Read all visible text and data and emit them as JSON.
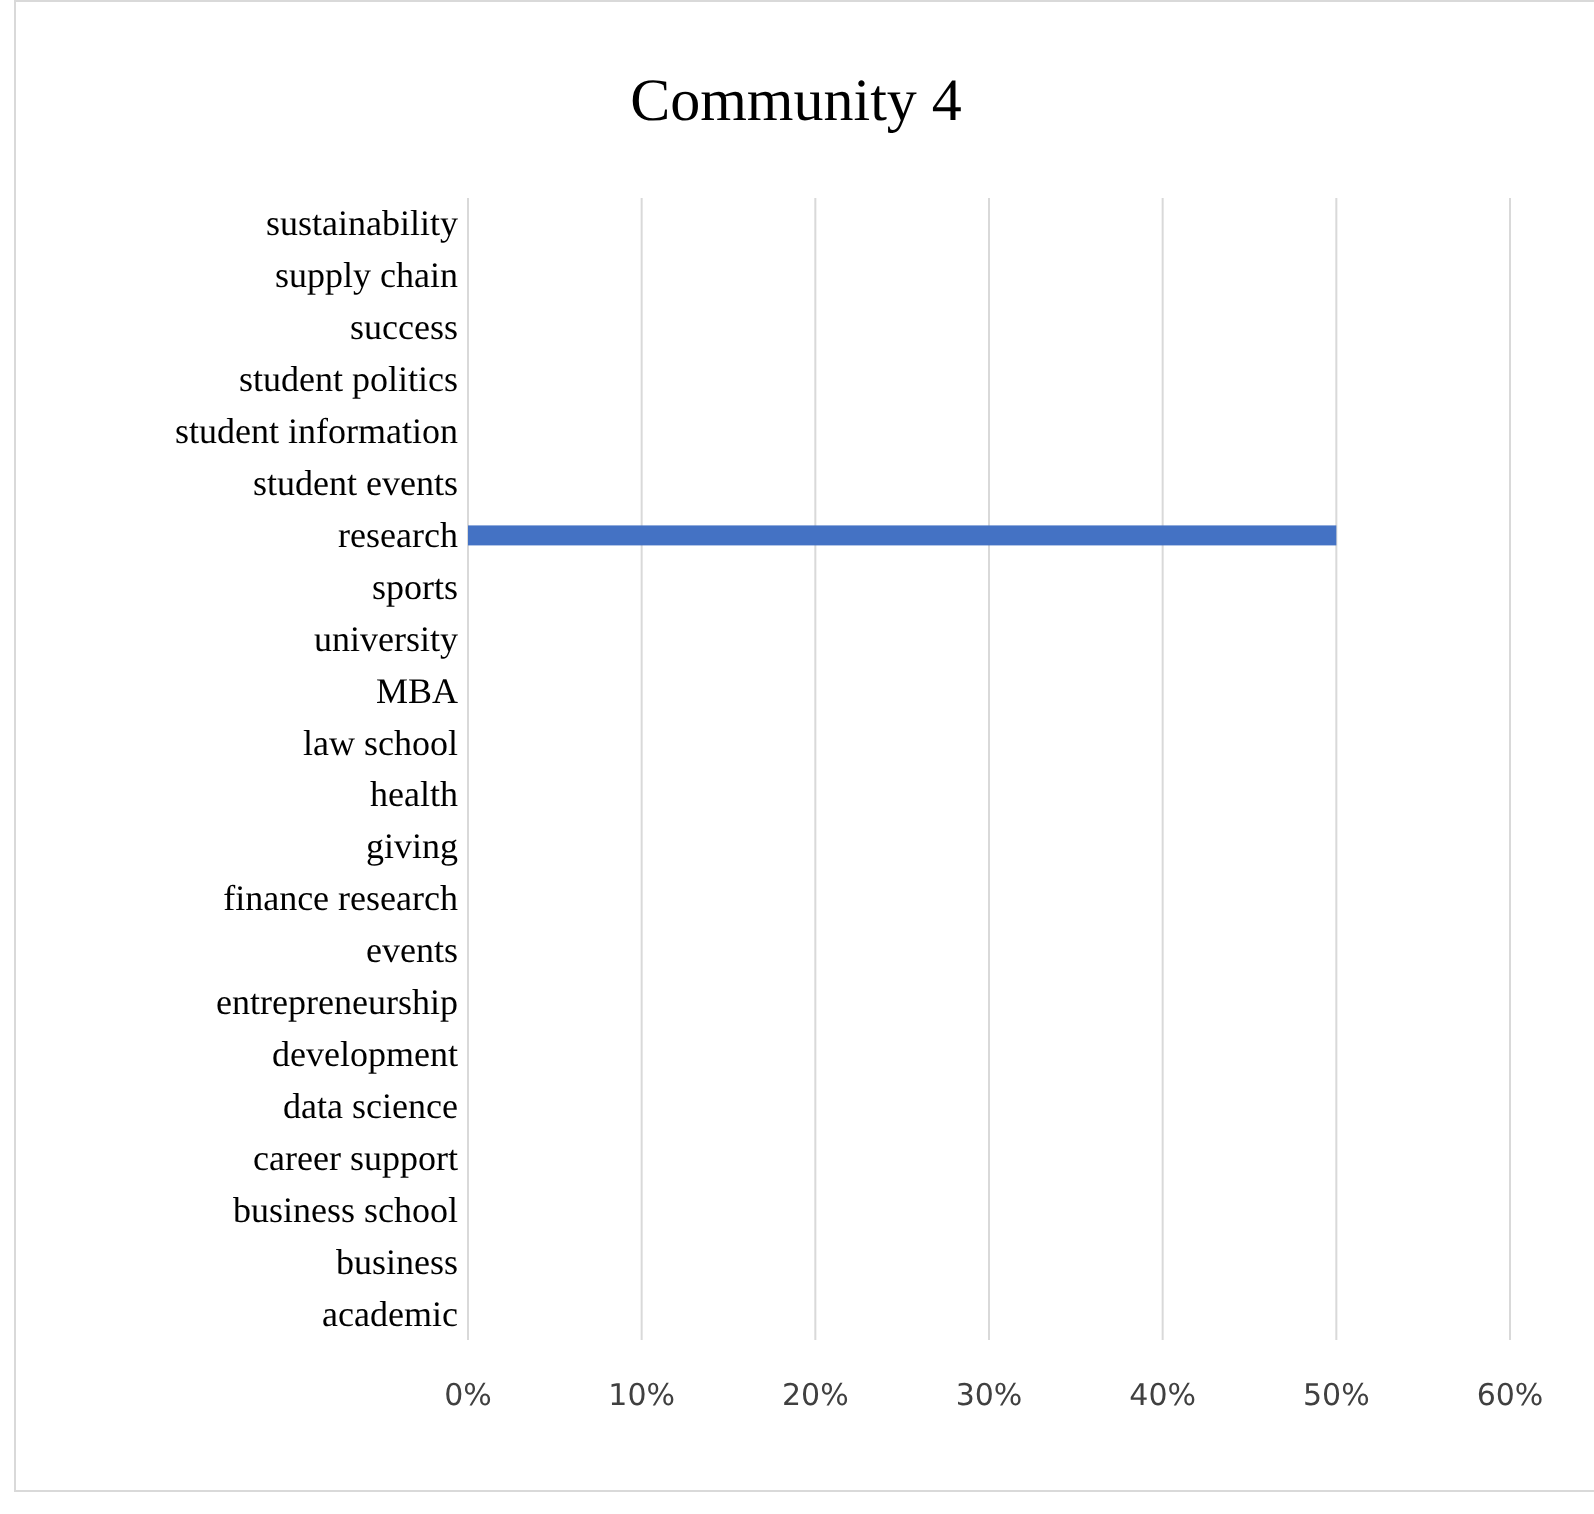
{
  "chart_data": {
    "type": "bar",
    "orientation": "horizontal",
    "title": "Community 4",
    "categories": [
      "sustainability",
      "supply chain",
      "success",
      "student politics",
      "student information",
      "student events",
      "research",
      "sports",
      "university",
      "MBA",
      "law school",
      "health",
      "giving",
      "finance research",
      "events",
      "entrepreneurship",
      "development",
      "data science",
      "career support",
      "business school",
      "business",
      "academic"
    ],
    "values": [
      0,
      0,
      0,
      0,
      0,
      0,
      50,
      0,
      0,
      0,
      0,
      0,
      0,
      0,
      0,
      0,
      0,
      0,
      0,
      0,
      0,
      0
    ],
    "color": "#4472c4",
    "xlim": [
      0,
      60
    ],
    "xticks": [
      {
        "value": 0,
        "label": "0%"
      },
      {
        "value": 10,
        "label": "10%"
      },
      {
        "value": 20,
        "label": "20%"
      },
      {
        "value": 30,
        "label": "30%"
      },
      {
        "value": 40,
        "label": "40%"
      },
      {
        "value": 50,
        "label": "50%"
      },
      {
        "value": 60,
        "label": "60%"
      }
    ],
    "grid": "x"
  }
}
